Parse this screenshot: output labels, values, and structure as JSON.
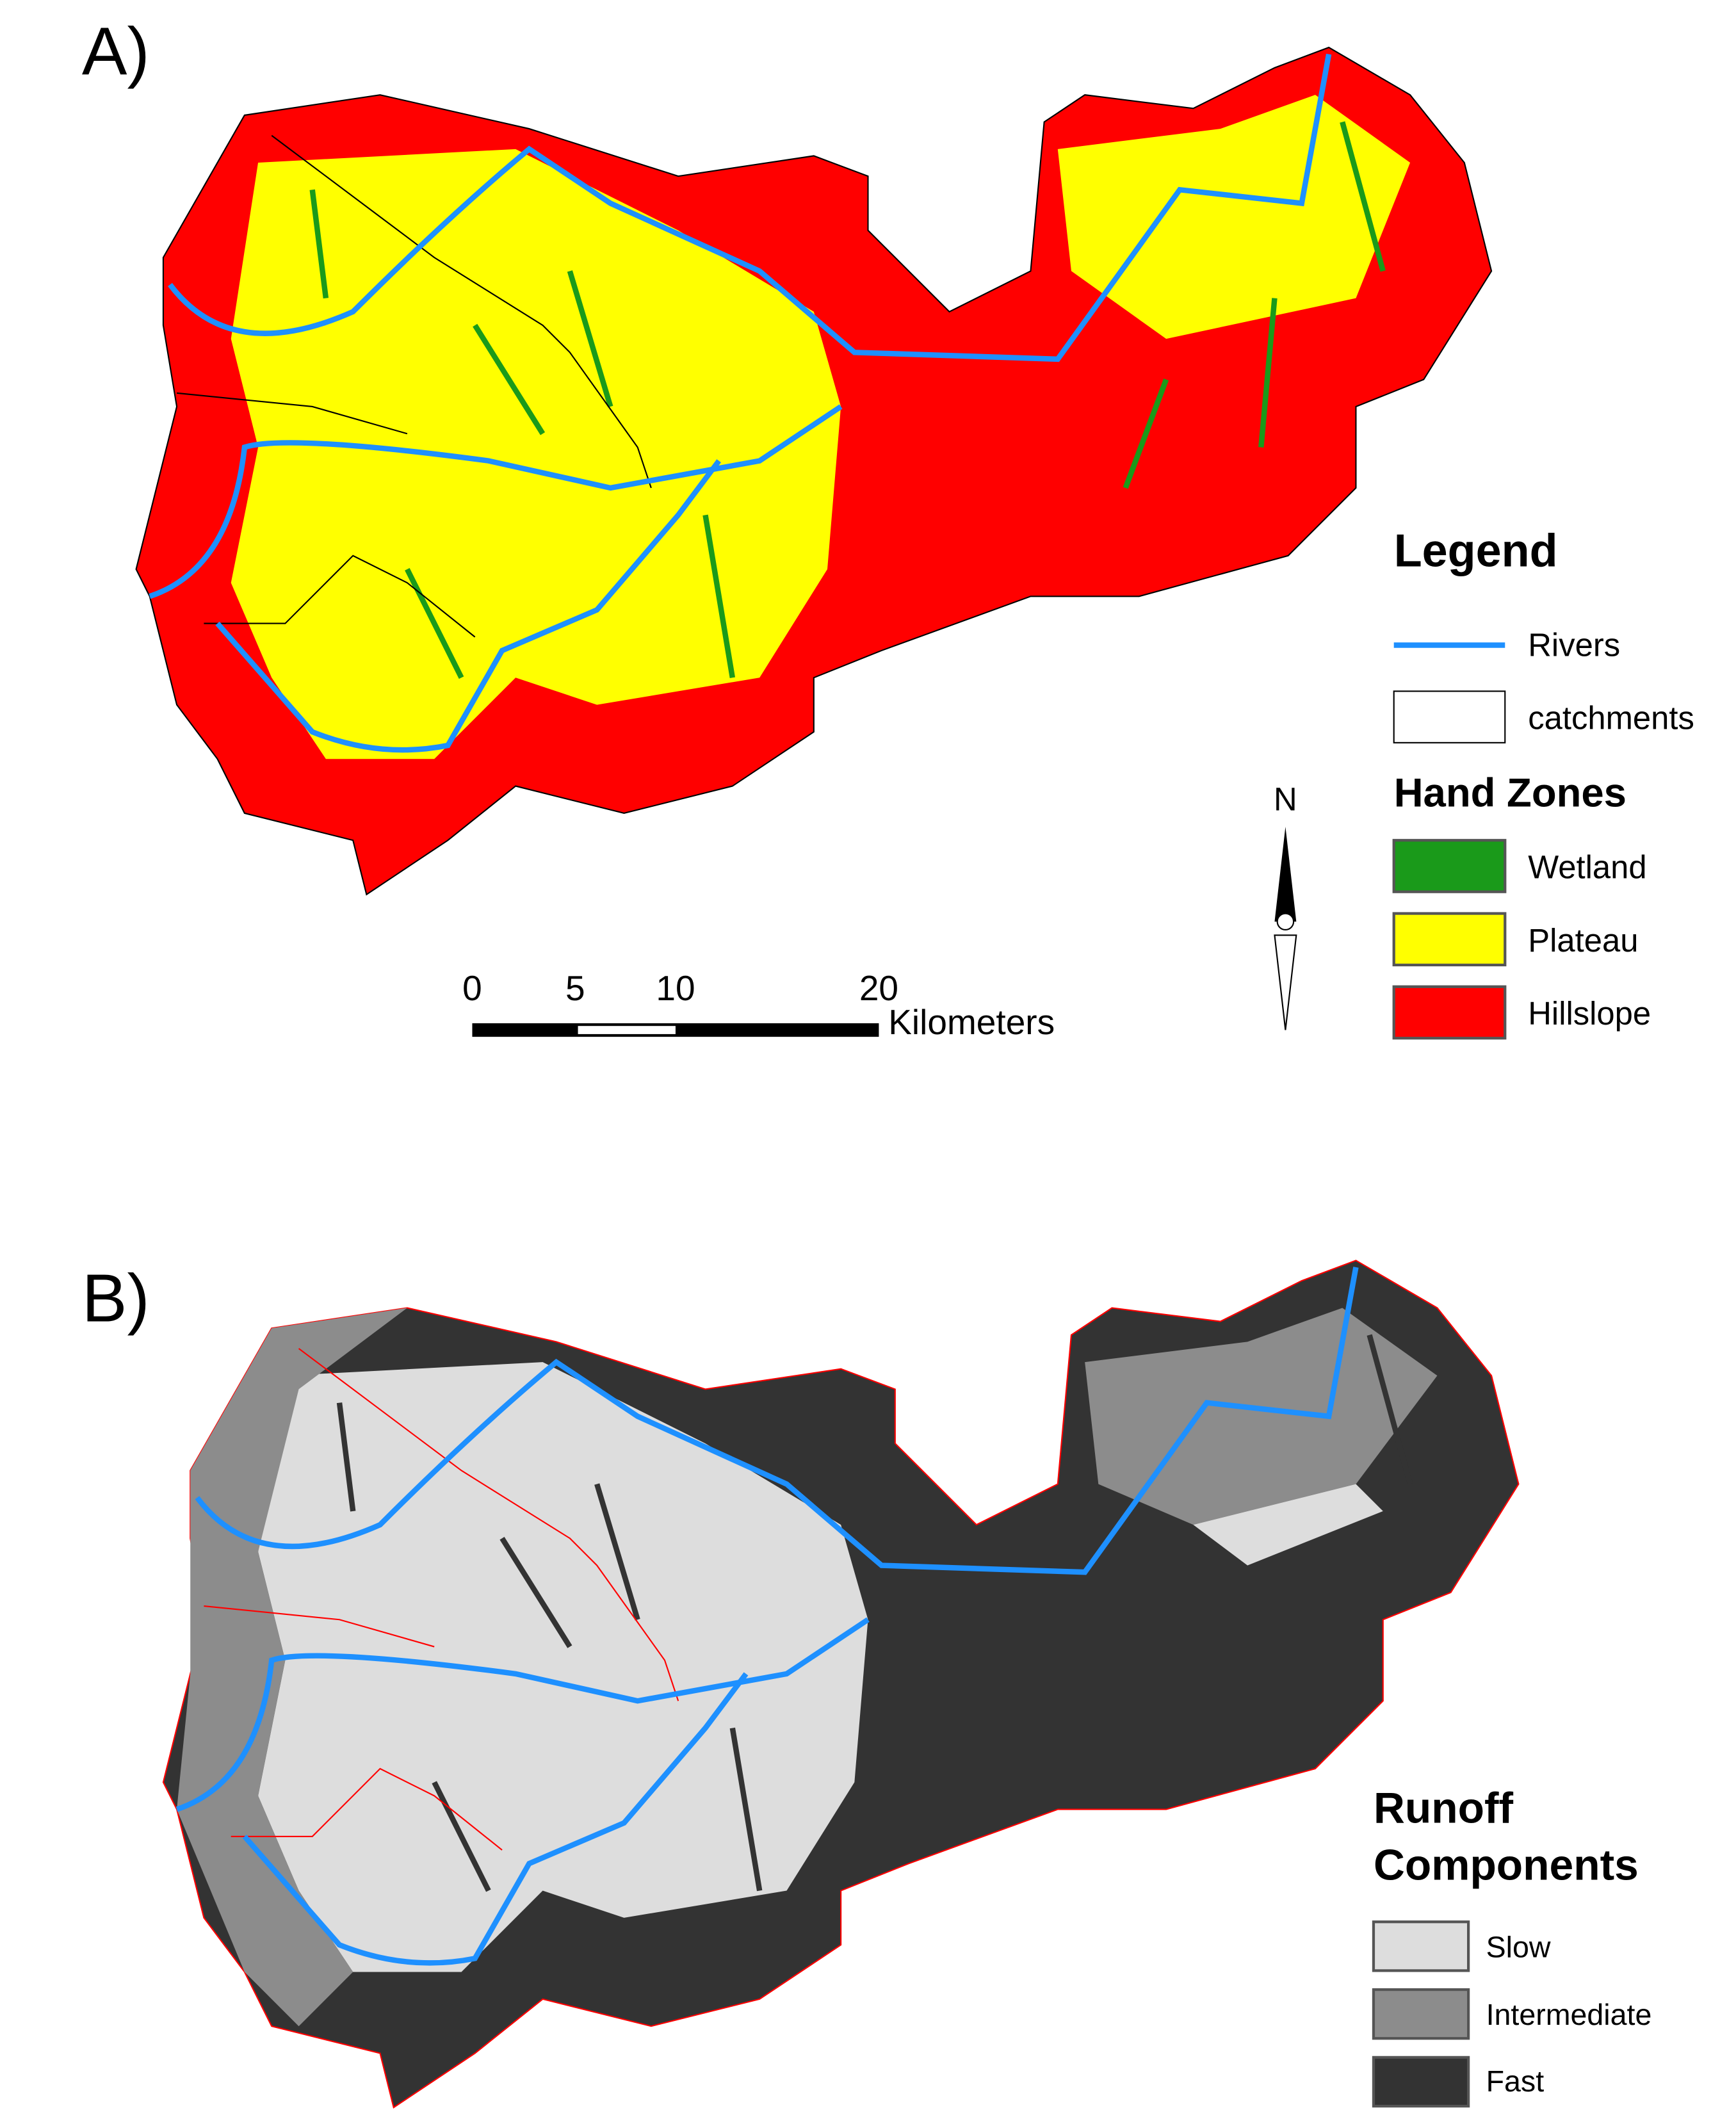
{
  "panel_a": {
    "label": "A)",
    "legend": {
      "title": "Legend",
      "rivers": "Rivers",
      "catchments": "catchments",
      "zones_title": "Hand Zones",
      "zones": [
        "Wetland",
        "Plateau",
        "Hillslope"
      ]
    },
    "scale_bar": {
      "ticks": [
        "0",
        "5",
        "10",
        "20"
      ],
      "unit": "Kilometers"
    },
    "north": "N"
  },
  "panel_b": {
    "label": "B)",
    "legend": {
      "title_lines": [
        "Runoff",
        "Components"
      ],
      "classes": [
        "Slow",
        "Intermediate",
        "Fast"
      ]
    }
  }
}
